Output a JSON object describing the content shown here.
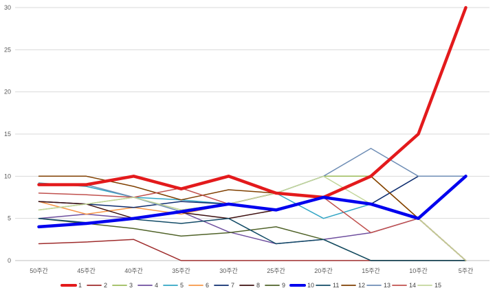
{
  "chart_data": {
    "type": "line",
    "title": "",
    "xlabel": "",
    "ylabel": "",
    "categories": [
      "50주간",
      "45주간",
      "40주간",
      "35주간",
      "30주간",
      "25주간",
      "20주간",
      "15주간",
      "10주간",
      "5주간"
    ],
    "ylim": [
      0,
      30
    ],
    "yticks": [
      0,
      5,
      10,
      15,
      20,
      25,
      30
    ],
    "grid": "horizontal",
    "legend_position": "bottom",
    "series": [
      {
        "name": "1",
        "color": "#e31a1c",
        "bold": true,
        "values": [
          9,
          9,
          10,
          8.5,
          10,
          8,
          7.5,
          10,
          15,
          30
        ]
      },
      {
        "name": "2",
        "color": "#9e2b2b",
        "bold": false,
        "values": [
          2,
          2.2,
          2.5,
          0,
          0,
          0,
          0,
          0,
          0,
          0
        ]
      },
      {
        "name": "3",
        "color": "#9bbb59",
        "bold": false,
        "values": [
          6,
          6.7,
          7.5,
          6,
          6.7,
          8,
          10,
          10,
          5,
          0
        ]
      },
      {
        "name": "4",
        "color": "#6e4e9e",
        "bold": false,
        "values": [
          5,
          5.5,
          5,
          5.8,
          3.4,
          2,
          2.5,
          3.3,
          5,
          10
        ]
      },
      {
        "name": "5",
        "color": "#31a5c4",
        "bold": false,
        "values": [
          9.2,
          8.8,
          7.5,
          7.2,
          6.7,
          8,
          5,
          6.7,
          5,
          0
        ]
      },
      {
        "name": "6",
        "color": "#f79646",
        "bold": false,
        "values": [
          7,
          5.5,
          6.3,
          5.5,
          6.7,
          8,
          7.5,
          10,
          5,
          0
        ]
      },
      {
        "name": "7",
        "color": "#0d2c6e",
        "bold": false,
        "values": [
          7,
          6.7,
          6.3,
          7,
          6.7,
          6,
          7.5,
          6.7,
          10,
          10
        ]
      },
      {
        "name": "8",
        "color": "#3d0f0f",
        "bold": false,
        "values": [
          7,
          6.7,
          5,
          5.7,
          5,
          6,
          7.5,
          6.7,
          5,
          0
        ]
      },
      {
        "name": "9",
        "color": "#4f6228",
        "bold": false,
        "values": [
          5,
          4.4,
          3.8,
          2.9,
          3.3,
          4,
          2.5,
          0,
          0,
          0
        ]
      },
      {
        "name": "10",
        "color": "#0000ee",
        "bold": true,
        "values": [
          4,
          4.4,
          5,
          5.8,
          6.7,
          6,
          7.5,
          6.7,
          5,
          10
        ]
      },
      {
        "name": "11",
        "color": "#114a66",
        "bold": false,
        "values": [
          5,
          4.5,
          4.9,
          4.4,
          5,
          2,
          2.5,
          0,
          0,
          0
        ]
      },
      {
        "name": "12",
        "color": "#7f3f00",
        "bold": false,
        "values": [
          10,
          10,
          8.8,
          7.2,
          8.4,
          8,
          7.5,
          10,
          5,
          0
        ]
      },
      {
        "name": "13",
        "color": "#6e8db5",
        "bold": false,
        "values": [
          9,
          9,
          7.5,
          5.8,
          6.7,
          8,
          10,
          13.3,
          10,
          10
        ]
      },
      {
        "name": "14",
        "color": "#c0504d",
        "bold": false,
        "values": [
          8,
          7.8,
          7.5,
          8.6,
          6.7,
          8,
          7.5,
          3.3,
          5,
          0
        ]
      },
      {
        "name": "15",
        "color": "#c3d69b",
        "bold": false,
        "values": [
          6,
          6.7,
          7.5,
          6,
          6.7,
          8,
          10,
          6.7,
          5,
          0
        ]
      }
    ]
  }
}
